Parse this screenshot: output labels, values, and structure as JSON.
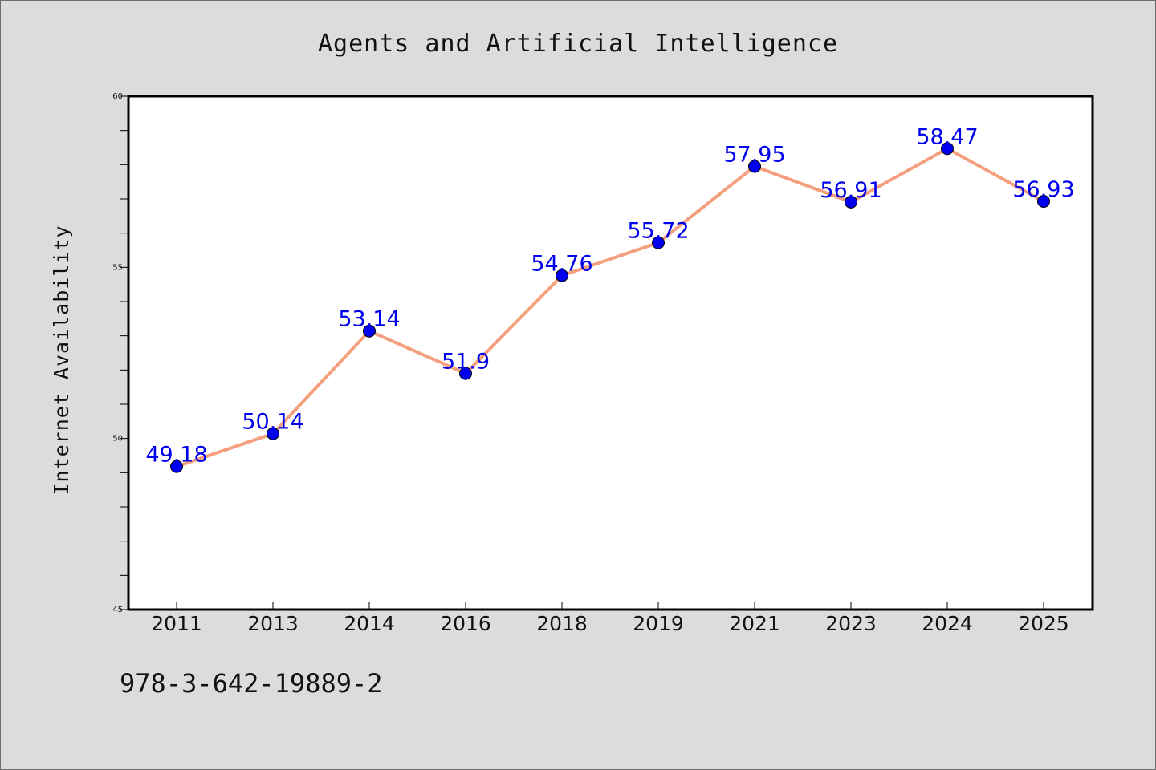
{
  "chart_data": {
    "type": "line",
    "title": "Agents and Artificial Intelligence",
    "xlabel": "",
    "ylabel": "Internet Availability",
    "categories": [
      "2011",
      "2013",
      "2014",
      "2016",
      "2018",
      "2019",
      "2021",
      "2023",
      "2024",
      "2025"
    ],
    "series": [
      {
        "values": [
          49.18,
          50.14,
          53.14,
          51.9,
          54.76,
          55.72,
          57.95,
          56.91,
          58.47,
          56.93
        ],
        "data_labels": [
          "49.18",
          "50.14",
          "53.14",
          "51.9",
          "54.76",
          "55.72",
          "57.95",
          "56.91",
          "58.47",
          "56.93"
        ],
        "line_color": "#f4a07e",
        "marker_color": "#0000ee"
      }
    ],
    "ylim": [
      45,
      60
    ],
    "yticks": [
      "45",
      "50",
      "55",
      "60"
    ],
    "grid": false,
    "label_color": "#0000ee"
  },
  "footer": {
    "text": "978-3-642-19889-2"
  }
}
